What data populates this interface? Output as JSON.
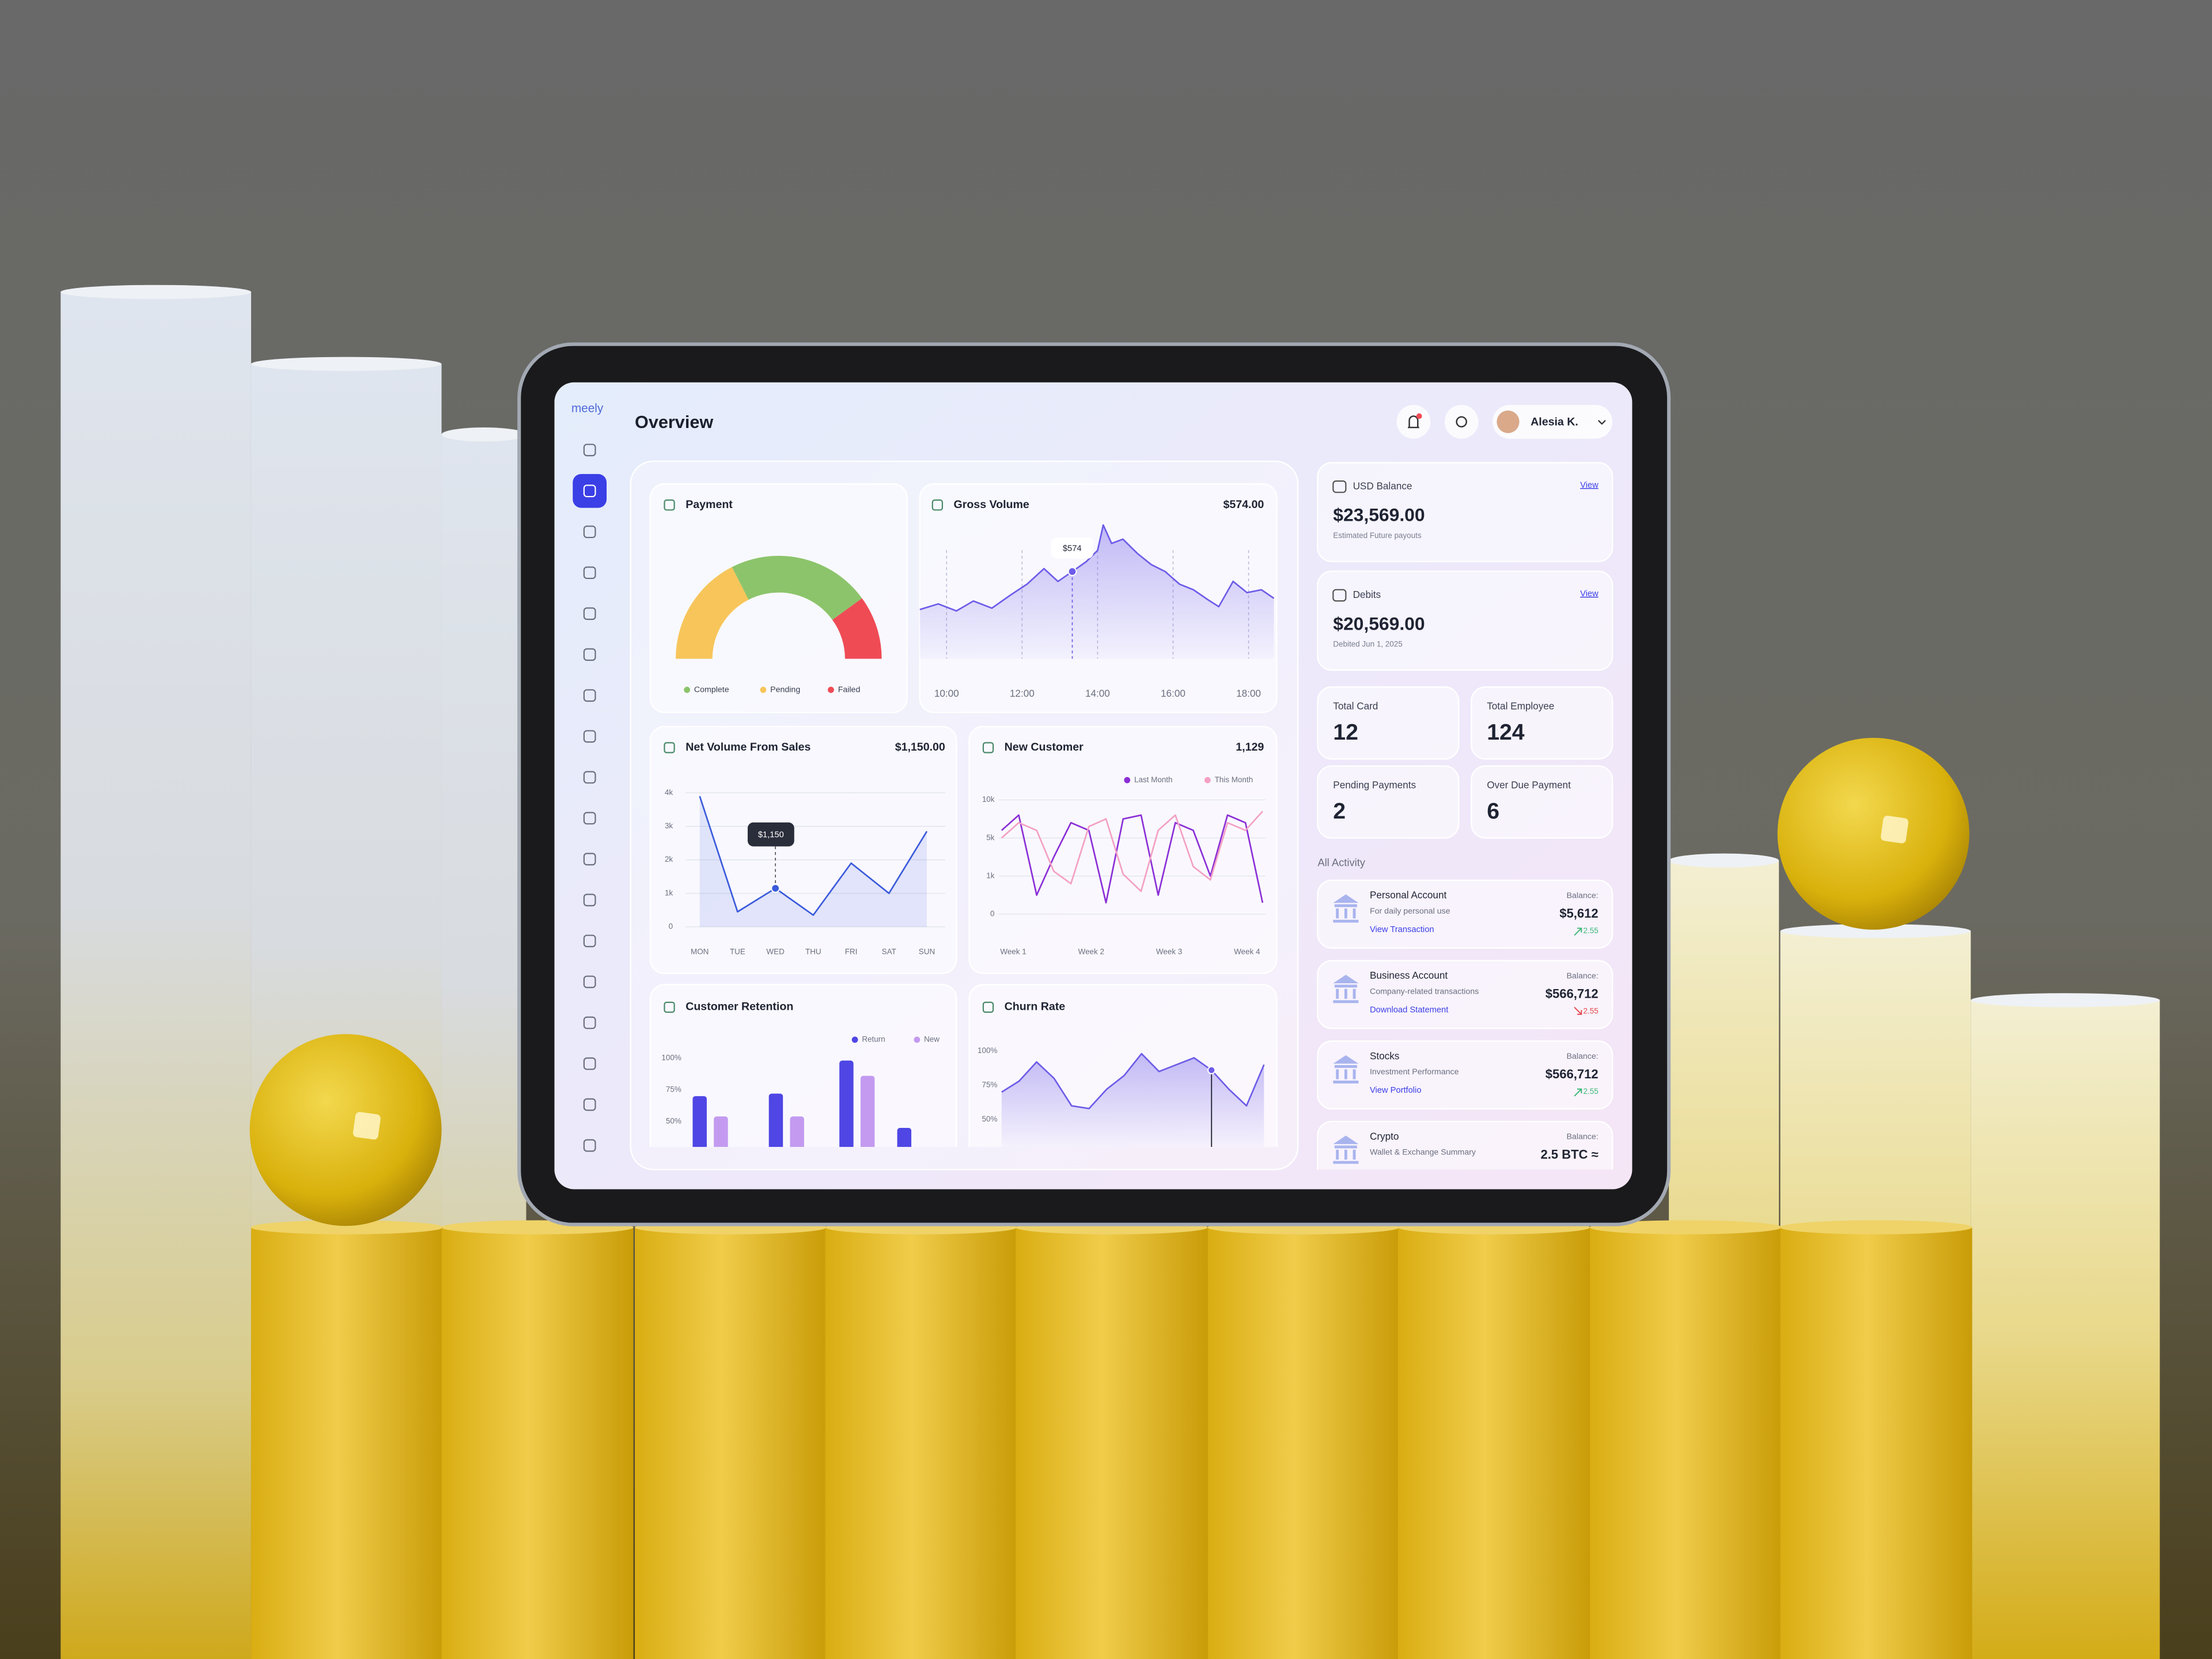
{
  "sidebar": {
    "brand": "meely"
  },
  "header": {
    "title": "Overview",
    "user": "Alesia K."
  },
  "chart_data": [
    {
      "type": "gauge",
      "title": "Payment",
      "categories": [
        "Complete",
        "Pending",
        "Failed"
      ],
      "values": [
        45,
        35,
        20
      ],
      "colors": [
        "#8cc46b",
        "#f7c55a",
        "#ef4b55"
      ]
    },
    {
      "type": "area",
      "title": "Gross Volume",
      "total": "$574.00",
      "annotation": "$574",
      "color": "#6d5ce8",
      "x": [
        9.29,
        9.78,
        10.26,
        10.71,
        11.2,
        11.68,
        12.13,
        12.58,
        12.95,
        13.33,
        13.7,
        14.0,
        14.15,
        14.37,
        14.67,
        15.05,
        15.42,
        15.79,
        16.17,
        16.54,
        16.92,
        17.21,
        17.59,
        17.96,
        18.34,
        18.67
      ],
      "values": [
        324,
        361,
        315,
        380,
        333,
        417,
        491,
        593,
        509,
        574,
        639,
        713,
        880,
        759,
        787,
        694,
        620,
        574,
        491,
        454,
        389,
        343,
        509,
        435,
        454,
        398
      ],
      "xlim": [
        9.29,
        18.67
      ],
      "ylim": [
        0,
        900
      ],
      "xticks": [
        {
          "value": 10,
          "label": "10:00"
        },
        {
          "value": 12,
          "label": "12:00"
        },
        {
          "value": 14,
          "label": "14:00"
        },
        {
          "value": 16,
          "label": "16:00"
        },
        {
          "value": 18,
          "label": "18:00"
        }
      ]
    },
    {
      "type": "line",
      "title": "Net Volume From Sales",
      "total": "$1,150.00",
      "annotation": "$1,150",
      "color": "#3b5bdb",
      "grid": true,
      "categories": [
        "MON",
        "TUE",
        "WED",
        "THU",
        "FRI",
        "SAT",
        "SUN"
      ],
      "values": [
        3900,
        450,
        1150,
        350,
        1900,
        1000,
        2850
      ],
      "ylim": [
        0,
        4000
      ],
      "yticks": [
        0,
        {
          "value": 1000,
          "label": "1k"
        },
        {
          "value": 2000,
          "label": "2k"
        },
        {
          "value": 3000,
          "label": "3k"
        },
        {
          "value": 4000,
          "label": "4k"
        }
      ]
    },
    {
      "type": "line",
      "title": "New Customer",
      "total": "1,129",
      "grid": true,
      "yscale": "ticks",
      "x": [
        0.85,
        1.07,
        1.3,
        1.52,
        1.74,
        1.97,
        2.19,
        2.41,
        2.64,
        2.86,
        3.08,
        3.31,
        3.53,
        3.75,
        3.98,
        4.2
      ],
      "xlim": [
        0.85,
        4.2
      ],
      "ylim": [
        0,
        10000
      ],
      "xticks": [
        {
          "value": 1,
          "label": "Week 1"
        },
        {
          "value": 2,
          "label": "Week 2"
        },
        {
          "value": 3,
          "label": "Week 3"
        },
        {
          "value": 4,
          "label": "Week 4"
        }
      ],
      "yticks": [
        0,
        {
          "value": 1000,
          "label": "1k"
        },
        {
          "value": 5000,
          "label": "5k"
        },
        {
          "value": 10000,
          "label": "10k"
        }
      ],
      "series": [
        {
          "name": "Last Month",
          "color": "#8b2fd6",
          "values": [
            6000,
            8000,
            500,
            3000,
            7000,
            6000,
            300,
            7500,
            8000,
            500,
            7000,
            6000,
            1000,
            8000,
            7000,
            300
          ]
        },
        {
          "name": "This Month",
          "color": "#f4a0c4",
          "values": [
            5000,
            7000,
            6000,
            1500,
            800,
            6500,
            7500,
            1200,
            600,
            6000,
            8000,
            2000,
            900,
            7000,
            6000,
            8500
          ]
        }
      ]
    },
    {
      "type": "bar",
      "title": "Customer Retention",
      "categories": [
        null,
        null,
        null,
        null
      ],
      "ylim": [
        30,
        100
      ],
      "yticks": [
        {
          "value": 50,
          "label": "50%"
        },
        {
          "value": 75,
          "label": "75%"
        },
        {
          "value": 100,
          "label": "100%"
        }
      ],
      "series": [
        {
          "name": "Return",
          "color": "#4f46e5",
          "values": [
            70,
            72,
            98,
            45
          ]
        },
        {
          "name": "New",
          "color": "#c39af0",
          "values": [
            54,
            54,
            86,
            null
          ]
        }
      ]
    },
    {
      "type": "area",
      "title": "Churn Rate",
      "color": "#6d5ce8",
      "values": [
        70,
        78,
        92,
        80,
        60,
        58,
        72,
        82,
        98,
        85,
        90,
        95,
        86,
        72,
        60,
        90
      ],
      "ylim": [
        30,
        100
      ],
      "yticks": [
        {
          "value": 50,
          "label": "50%"
        },
        {
          "value": 75,
          "label": "75%"
        },
        {
          "value": 100,
          "label": "100%"
        }
      ]
    }
  ],
  "balances": [
    {
      "label": "USD Balance",
      "link": "View",
      "amount": "$23,569.00",
      "note": "Estimated Future payouts"
    },
    {
      "label": "Debits",
      "link": "View",
      "amount": "$20,569.00",
      "note": "Debited Jun 1, 2025"
    }
  ],
  "stats": [
    {
      "label": "Total Card",
      "value": 12
    },
    {
      "label": "Total Employee",
      "value": 124
    },
    {
      "label": "Pending Payments",
      "value": 2
    },
    {
      "label": "Over Due Payment",
      "value": 6
    }
  ],
  "activity": {
    "title": "All Activity",
    "items": [
      {
        "name": "Personal Account",
        "desc": "For daily personal use",
        "link": "View Transaction",
        "balance_label": "Balance:",
        "amount": "$5,612",
        "change": "2.55",
        "trend": "up"
      },
      {
        "name": "Business Account",
        "desc": "Company-related transactions",
        "link": "Download Statement",
        "balance_label": "Balance:",
        "amount": "$566,712",
        "change": "2.55",
        "trend": "down"
      },
      {
        "name": "Stocks",
        "desc": "Investment Performance",
        "link": "View Portfolio",
        "balance_label": "Balance:",
        "amount": "$566,712",
        "change": "2.55",
        "trend": "up"
      },
      {
        "name": "Crypto",
        "desc": "Wallet & Exchange Summary",
        "balance_label": "Balance:",
        "amount": "2.5 BTC ≈"
      }
    ]
  }
}
